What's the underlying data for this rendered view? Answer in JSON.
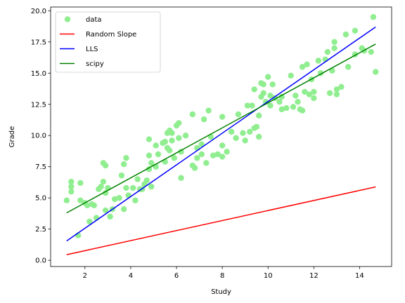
{
  "chart_data": {
    "type": "scatter",
    "xlabel": "Study",
    "ylabel": "Grade",
    "xlim": [
      0.5,
      15.4
    ],
    "ylim": [
      -0.5,
      20.3
    ],
    "x_ticks": [
      2,
      4,
      6,
      8,
      10,
      12,
      14
    ],
    "x_tick_labels": [
      "2",
      "4",
      "6",
      "8",
      "10",
      "12",
      "14"
    ],
    "y_ticks": [
      0.0,
      2.5,
      5.0,
      7.5,
      10.0,
      12.5,
      15.0,
      17.5,
      20.0
    ],
    "y_tick_labels": [
      "0.0",
      "2.5",
      "5.0",
      "7.5",
      "10.0",
      "12.5",
      "15.0",
      "17.5",
      "20.0"
    ],
    "grid": false,
    "legend_position": "upper-left",
    "scatter": {
      "name": "data",
      "color": "#90ee90",
      "points": [
        [
          1.2,
          4.8
        ],
        [
          1.4,
          5.5
        ],
        [
          1.4,
          6.3
        ],
        [
          1.4,
          5.9
        ],
        [
          1.7,
          2.0
        ],
        [
          1.8,
          6.2
        ],
        [
          1.8,
          4.8
        ],
        [
          2.0,
          4.6
        ],
        [
          2.1,
          4.4
        ],
        [
          2.2,
          3.1
        ],
        [
          2.3,
          4.5
        ],
        [
          2.4,
          4.4
        ],
        [
          2.5,
          3.4
        ],
        [
          2.6,
          5.7
        ],
        [
          2.7,
          5.9
        ],
        [
          2.8,
          6.3
        ],
        [
          2.8,
          7.8
        ],
        [
          2.9,
          7.6
        ],
        [
          2.9,
          5.4
        ],
        [
          2.9,
          4.0
        ],
        [
          3.0,
          5.8
        ],
        [
          3.1,
          3.5
        ],
        [
          3.2,
          4.1
        ],
        [
          3.3,
          4.9
        ],
        [
          3.5,
          5.0
        ],
        [
          3.6,
          6.8
        ],
        [
          3.7,
          7.7
        ],
        [
          3.7,
          4.1
        ],
        [
          3.8,
          5.8
        ],
        [
          3.8,
          8.2
        ],
        [
          3.9,
          5.2
        ],
        [
          4.1,
          5.8
        ],
        [
          4.2,
          4.8
        ],
        [
          4.3,
          6.5
        ],
        [
          4.4,
          5.7
        ],
        [
          4.5,
          5.7
        ],
        [
          4.6,
          6.1
        ],
        [
          4.7,
          6.4
        ],
        [
          4.8,
          7.3
        ],
        [
          4.8,
          8.4
        ],
        [
          4.8,
          9.7
        ],
        [
          4.9,
          7.8
        ],
        [
          4.9,
          5.9
        ],
        [
          5.1,
          7.5
        ],
        [
          5.1,
          9.2
        ],
        [
          5.2,
          8.5
        ],
        [
          5.4,
          9.4
        ],
        [
          5.5,
          9.5
        ],
        [
          5.5,
          7.9
        ],
        [
          5.6,
          10.2
        ],
        [
          5.6,
          9.0
        ],
        [
          5.7,
          10.4
        ],
        [
          5.7,
          8.8
        ],
        [
          5.8,
          10.2
        ],
        [
          5.8,
          9.6
        ],
        [
          5.9,
          8.2
        ],
        [
          6.0,
          10.8
        ],
        [
          6.1,
          11.0
        ],
        [
          6.1,
          9.8
        ],
        [
          6.2,
          8.7
        ],
        [
          6.2,
          6.6
        ],
        [
          6.4,
          10.0
        ],
        [
          6.7,
          11.7
        ],
        [
          6.7,
          7.6
        ],
        [
          6.8,
          7.4
        ],
        [
          6.9,
          8.2
        ],
        [
          6.9,
          9.0
        ],
        [
          7.1,
          9.3
        ],
        [
          7.1,
          8.5
        ],
        [
          7.2,
          11.3
        ],
        [
          7.3,
          7.8
        ],
        [
          7.4,
          12.0
        ],
        [
          7.5,
          9.9
        ],
        [
          7.6,
          8.4
        ],
        [
          7.8,
          8.5
        ],
        [
          8.0,
          8.3
        ],
        [
          8.0,
          9.2
        ],
        [
          8.0,
          11.5
        ],
        [
          8.2,
          8.7
        ],
        [
          8.4,
          10.3
        ],
        [
          8.6,
          9.8
        ],
        [
          8.7,
          11.7
        ],
        [
          8.9,
          10.2
        ],
        [
          9.0,
          9.6
        ],
        [
          9.1,
          12.4
        ],
        [
          9.2,
          10.3
        ],
        [
          9.3,
          12.4
        ],
        [
          9.4,
          13.7
        ],
        [
          9.4,
          10.6
        ],
        [
          9.5,
          10.7
        ],
        [
          9.6,
          11.6
        ],
        [
          9.6,
          9.9
        ],
        [
          9.7,
          14.2
        ],
        [
          9.7,
          13.1
        ],
        [
          9.8,
          13.4
        ],
        [
          9.8,
          14.1
        ],
        [
          9.9,
          12.7
        ],
        [
          10.0,
          14.7
        ],
        [
          10.1,
          12.4
        ],
        [
          10.1,
          13.2
        ],
        [
          10.2,
          14.1
        ],
        [
          10.3,
          13.0
        ],
        [
          10.5,
          12.7
        ],
        [
          10.6,
          13.1
        ],
        [
          10.6,
          12.1
        ],
        [
          10.8,
          12.2
        ],
        [
          11.0,
          14.8
        ],
        [
          11.1,
          12.3
        ],
        [
          11.2,
          13.2
        ],
        [
          11.3,
          12.7
        ],
        [
          11.4,
          12.1
        ],
        [
          11.5,
          12.0
        ],
        [
          11.5,
          15.5
        ],
        [
          11.6,
          13.5
        ],
        [
          11.7,
          15.7
        ],
        [
          11.8,
          13.3
        ],
        [
          11.9,
          14.5
        ],
        [
          12.0,
          13.5
        ],
        [
          12.0,
          13.0
        ],
        [
          12.2,
          16.0
        ],
        [
          12.3,
          15.0
        ],
        [
          12.5,
          16.1
        ],
        [
          12.6,
          16.7
        ],
        [
          12.7,
          13.4
        ],
        [
          12.8,
          15.2
        ],
        [
          12.9,
          17.5
        ],
        [
          12.9,
          17.0
        ],
        [
          13.0,
          13.3
        ],
        [
          13.0,
          13.7
        ],
        [
          13.2,
          13.9
        ],
        [
          13.4,
          18.1
        ],
        [
          13.5,
          15.5
        ],
        [
          13.8,
          16.5
        ],
        [
          13.8,
          18.4
        ],
        [
          14.1,
          17.0
        ],
        [
          14.2,
          16.8
        ],
        [
          14.5,
          16.7
        ],
        [
          14.6,
          19.5
        ],
        [
          14.7,
          15.1
        ]
      ]
    },
    "lines": [
      {
        "name": "Random Slope",
        "color": "#ff0000",
        "x": [
          1.2,
          14.7
        ],
        "y": [
          0.45,
          5.88
        ]
      },
      {
        "name": "LLS",
        "color": "#0000ff",
        "x": [
          1.2,
          14.7
        ],
        "y": [
          1.55,
          18.7
        ]
      },
      {
        "name": "scipy",
        "color": "#008000",
        "x": [
          1.2,
          14.7
        ],
        "y": [
          3.8,
          17.33
        ]
      }
    ],
    "legend": [
      "data",
      "Random Slope",
      "LLS",
      "scipy"
    ]
  }
}
